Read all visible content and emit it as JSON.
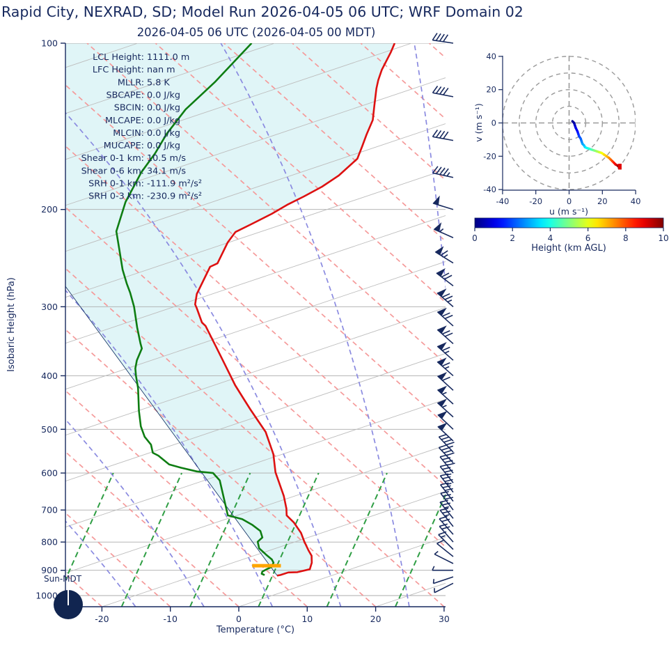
{
  "title": "Rapid City, NEXRAD, SD; Model Run 2026-04-05 06 UTC; WRF Domain 02",
  "subtitle": "2026-04-05 06 UTC  (2026-04-05 00 MDT)",
  "colors": {
    "navy": "#17295e",
    "temperature_line": "#dd1111",
    "dewpoint_line": "#0e7d12",
    "cape_fill": "#e0f5f7",
    "dry_adiabat": "#f59a9a",
    "moist_adiabat": "#8a8ae0",
    "mixing_line": "#2f9e44",
    "isotherm_gray": "#bdbdbd",
    "grid_gray": "#ababab",
    "lcl_marker": "#ffa500",
    "parcel_line": "#1b3a6b",
    "hodo_ring_gray": "#9a9a9a",
    "end_bar_red": "#e00000"
  },
  "stats": [
    {
      "label": "LCL Height:",
      "value": "1111.0 m"
    },
    {
      "label": "LFC Height:",
      "value": "nan m"
    },
    {
      "label": "MLLR:",
      "value": "5.8 K"
    },
    {
      "label": "SBCAPE:",
      "value": "0.0 J/kg"
    },
    {
      "label": "SBCIN:",
      "value": "0.0 J/kg"
    },
    {
      "label": "MLCAPE:",
      "value": "0.0 J/kg"
    },
    {
      "label": "MLCIN:",
      "value": "0.0 J/kg"
    },
    {
      "label": "MUCAPE:",
      "value": "0.0 J/kg"
    },
    {
      "label": "Shear 0-1 km:",
      "value": "10.5 m/s"
    },
    {
      "label": "Shear 0-6 km:",
      "value": "34.1 m/s"
    },
    {
      "label": "SRH 0-1 km:",
      "value": "-111.9 m²/s²"
    },
    {
      "label": "SRH 0-3 km:",
      "value": "-230.9 m²/s²"
    }
  ],
  "skewt": {
    "ylabel": "Isobaric Height (hPa)",
    "xlabel": "Temperature (°C)",
    "pressure_ticks": [
      100,
      200,
      300,
      400,
      500,
      600,
      700,
      800,
      900,
      1000
    ],
    "temp_ticks": [
      -20,
      -10,
      0,
      10,
      20,
      30
    ],
    "sun_label": "Sun-MDT"
  },
  "hodograph": {
    "xlabel": "u (m s⁻¹)",
    "ylabel": "v (m s⁻¹)",
    "u_ticks": [
      -40,
      -20,
      0,
      20,
      40
    ],
    "v_ticks": [
      40,
      20,
      0,
      -20,
      -40
    ],
    "ring_radii": [
      10,
      20,
      30,
      40
    ]
  },
  "colorbar": {
    "label": "Height (km AGL)",
    "ticks": [
      0,
      2,
      4,
      6,
      8,
      10
    ],
    "min": 0,
    "max": 10
  },
  "chart_data": {
    "type": "skewt_log_p",
    "pressure_range_hpa": [
      100,
      1050
    ],
    "temp_axis_range_c": [
      -25,
      30
    ],
    "temperature_profile_p_t": [
      [
        100.0,
        -55.0
      ],
      [
        103.9,
        -54.3
      ],
      [
        111.7,
        -53.2
      ],
      [
        116.6,
        -52.3
      ],
      [
        120.8,
        -51.4
      ],
      [
        129.9,
        -49.3
      ],
      [
        137.7,
        -47.6
      ],
      [
        146.3,
        -46.5
      ],
      [
        153.7,
        -45.5
      ],
      [
        161.9,
        -44.5
      ],
      [
        173.6,
        -44.9
      ],
      [
        181.9,
        -45.8
      ],
      [
        189.4,
        -47.1
      ],
      [
        196.2,
        -48.4
      ],
      [
        203.7,
        -49.4
      ],
      [
        212.8,
        -51.0
      ],
      [
        219.7,
        -52.2
      ],
      [
        229.4,
        -51.9
      ],
      [
        250.4,
        -50.5
      ],
      [
        254.0,
        -51.1
      ],
      [
        284.4,
        -49.3
      ],
      [
        297.1,
        -48.1
      ],
      [
        301.4,
        -47.4
      ],
      [
        320.4,
        -44.6
      ],
      [
        325.0,
        -43.6
      ],
      [
        353.7,
        -39.3
      ],
      [
        381.3,
        -35.5
      ],
      [
        416.1,
        -31.1
      ],
      [
        441.0,
        -27.9
      ],
      [
        460.6,
        -25.5
      ],
      [
        505.5,
        -20.2
      ],
      [
        554.6,
        -16.0
      ],
      [
        598.0,
        -13.2
      ],
      [
        660.3,
        -8.7
      ],
      [
        695.6,
        -6.6
      ],
      [
        716.0,
        -5.6
      ],
      [
        737.0,
        -3.6
      ],
      [
        770.0,
        -1.1
      ],
      [
        797.0,
        0.5
      ],
      [
        828.0,
        2.4
      ],
      [
        847.0,
        3.6
      ],
      [
        872.0,
        4.6
      ],
      [
        896.0,
        5.2
      ],
      [
        907.0,
        3.8
      ],
      [
        908.0,
        2.5
      ],
      [
        918.0,
        1.7
      ],
      [
        920.0,
        1.3
      ]
    ],
    "dewpoint_profile_p_t": [
      [
        100.0,
        -75.9
      ],
      [
        117.7,
        -75.9
      ],
      [
        131.8,
        -76.4
      ],
      [
        145.9,
        -75.8
      ],
      [
        158.2,
        -74.8
      ],
      [
        171.2,
        -74.2
      ],
      [
        193.9,
        -72.4
      ],
      [
        219.1,
        -69.7
      ],
      [
        234.2,
        -67.1
      ],
      [
        257.0,
        -63.5
      ],
      [
        272.2,
        -61.0
      ],
      [
        283.0,
        -59.2
      ],
      [
        300.0,
        -56.7
      ],
      [
        327.0,
        -53.4
      ],
      [
        349.6,
        -50.7
      ],
      [
        357.0,
        -49.8
      ],
      [
        375.0,
        -48.9
      ],
      [
        388.0,
        -48.0
      ],
      [
        400.0,
        -46.9
      ],
      [
        421.0,
        -44.9
      ],
      [
        463.3,
        -41.6
      ],
      [
        494.0,
        -39.2
      ],
      [
        516.0,
        -37.2
      ],
      [
        533.0,
        -35.2
      ],
      [
        551.5,
        -33.8
      ],
      [
        558.0,
        -32.6
      ],
      [
        579.0,
        -29.8
      ],
      [
        587.0,
        -27.6
      ],
      [
        596.0,
        -24.8
      ],
      [
        600.0,
        -22.2
      ],
      [
        619.0,
        -20.2
      ],
      [
        716.0,
        -14.2
      ],
      [
        727.0,
        -11.6
      ],
      [
        744.0,
        -9.4
      ],
      [
        764.0,
        -7.3
      ],
      [
        785.0,
        -6.1
      ],
      [
        799.0,
        -6.2
      ],
      [
        821.0,
        -5.1
      ],
      [
        843.0,
        -3.2
      ],
      [
        860.0,
        -1.7
      ],
      [
        872.0,
        -1.0
      ],
      [
        888.0,
        -0.7
      ],
      [
        896.0,
        -1.1
      ],
      [
        905.0,
        -1.4
      ],
      [
        913.0,
        -1.2
      ],
      [
        918.0,
        -0.6
      ]
    ],
    "parcel_line_p_t": [
      [
        271.6,
        -70.4
      ],
      [
        920.0,
        1.3
      ]
    ],
    "lcl_marker": {
      "pressure_hpa": 883,
      "temp_c": -1.6,
      "half_width_c": 2.1
    },
    "wind_barbs_p_u_v": [
      [
        100,
        20,
        -3
      ],
      [
        125,
        21,
        -4
      ],
      [
        150,
        22,
        -4
      ],
      [
        175,
        23,
        -5
      ],
      [
        200,
        26,
        -8
      ],
      [
        225,
        27,
        -12
      ],
      [
        250,
        29,
        -18
      ],
      [
        275,
        30,
        -23
      ],
      [
        300,
        30,
        -26
      ],
      [
        325,
        28,
        -25
      ],
      [
        350,
        27,
        -24
      ],
      [
        375,
        26,
        -23
      ],
      [
        400,
        25,
        -22
      ],
      [
        425,
        23,
        -21
      ],
      [
        450,
        22,
        -20
      ],
      [
        475,
        21,
        -19
      ],
      [
        500,
        19,
        -18
      ],
      [
        525,
        18,
        -17
      ],
      [
        550,
        16,
        -17
      ],
      [
        575,
        15,
        -16
      ],
      [
        600,
        13,
        -16
      ],
      [
        625,
        12,
        -15
      ],
      [
        650,
        11,
        -14
      ],
      [
        675,
        10,
        -13
      ],
      [
        700,
        9,
        -12
      ],
      [
        725,
        9,
        -11
      ],
      [
        750,
        8,
        -10
      ],
      [
        775,
        8,
        -9
      ],
      [
        800,
        7,
        -8
      ],
      [
        825,
        6,
        -6
      ],
      [
        850,
        5,
        -4
      ],
      [
        875,
        4,
        -2
      ],
      [
        900,
        3,
        0
      ],
      [
        925,
        3,
        1
      ],
      [
        950,
        2,
        1
      ]
    ],
    "hodograph_trace_u_v_km": [
      [
        2,
        1,
        0
      ],
      [
        3,
        0,
        0.3
      ],
      [
        3.5,
        -1.5,
        0.6
      ],
      [
        4,
        -3,
        0.9
      ],
      [
        5,
        -5,
        1.2
      ],
      [
        5.5,
        -6.5,
        1.5
      ],
      [
        6,
        -8,
        1.8
      ],
      [
        7,
        -9.5,
        2.1
      ],
      [
        7.5,
        -11,
        2.4
      ],
      [
        8,
        -12.5,
        2.7
      ],
      [
        9,
        -13.5,
        3.0
      ],
      [
        9.5,
        -14.5,
        3.3
      ],
      [
        10.5,
        -15,
        3.6
      ],
      [
        12,
        -15.5,
        4.0
      ],
      [
        13.5,
        -16,
        4.4
      ],
      [
        15,
        -16.5,
        4.8
      ],
      [
        16.5,
        -17,
        5.2
      ],
      [
        18,
        -17.5,
        5.6
      ],
      [
        19.5,
        -18,
        6.0
      ],
      [
        21,
        -19,
        6.4
      ],
      [
        22.5,
        -20,
        6.8
      ],
      [
        24,
        -21,
        7.2
      ],
      [
        25,
        -22,
        7.6
      ],
      [
        26,
        -23,
        8.0
      ],
      [
        27,
        -24,
        8.4
      ],
      [
        28,
        -25,
        8.8
      ],
      [
        29,
        -25.5,
        9.2
      ],
      [
        29.5,
        -26,
        9.6
      ],
      [
        30,
        -26,
        10
      ]
    ],
    "hodograph_end_bar": {
      "u": 30.5,
      "v_from": -24.5,
      "v_to": -28
    }
  }
}
